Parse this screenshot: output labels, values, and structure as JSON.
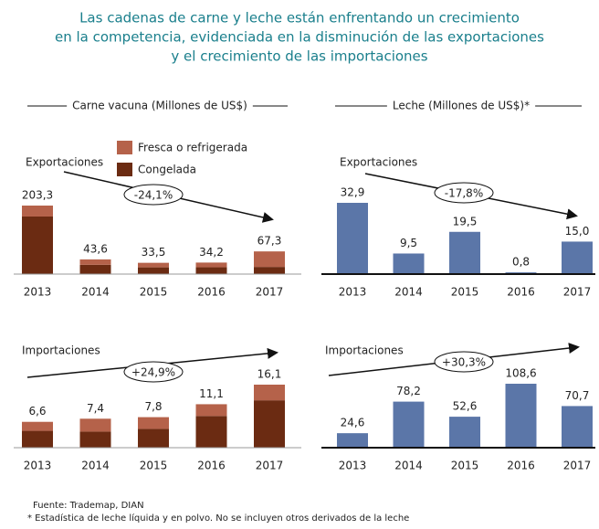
{
  "title": [
    "Las cadenas de carne y leche están enfrentando un crecimiento",
    "en la competencia, evidenciada en la disminución de las exportaciones",
    "y el crecimiento de las  importaciones"
  ],
  "source": "Fuente: Trademap, DIAN",
  "note": "* Estadística de leche líquida y en polvo. No se incluyen otros derivados de la leche",
  "chart_data": [
    {
      "type": "stacked_bar",
      "title": "Carne vacuna (Millones de US$)",
      "subtitle": "Exportaciones",
      "annotation": "-24,1%",
      "categories": [
        "2013",
        "2014",
        "2015",
        "2016",
        "2017"
      ],
      "series": [
        {
          "name": "Fresca o refrigerada",
          "color": "#b5624a",
          "values": [
            32.5,
            16,
            13.5,
            14,
            46
          ]
        },
        {
          "name": "Congelada",
          "color": "#6b2b12",
          "values": [
            170.8,
            27.6,
            20,
            20.2,
            21.3
          ]
        }
      ],
      "totals": [
        203.3,
        43.6,
        33.5,
        34.2,
        67.3
      ],
      "total_labels": [
        "203,3",
        "43,6",
        "33,5",
        "34,2",
        "67,3"
      ]
    },
    {
      "type": "bar",
      "title": "Leche (Millones de US$)*",
      "subtitle": "Exportaciones",
      "annotation": "-17,8%",
      "categories": [
        "2013",
        "2014",
        "2015",
        "2016",
        "2017"
      ],
      "color": "#5b76a8",
      "values": [
        32.9,
        9.5,
        19.5,
        0.8,
        15.0
      ],
      "value_labels": [
        "32,9",
        "9,5",
        "19,5",
        "0,8",
        "15,0"
      ]
    },
    {
      "type": "stacked_bar",
      "subtitle": "Importaciones",
      "annotation": "+24,9%",
      "categories": [
        "2013",
        "2014",
        "2015",
        "2016",
        "2017"
      ],
      "series": [
        {
          "color": "#b5624a",
          "values": [
            2.3,
            3.3,
            3.0,
            3.0,
            4.0
          ]
        },
        {
          "color": "#6b2b12",
          "values": [
            4.3,
            4.1,
            4.8,
            8.1,
            12.1
          ]
        }
      ],
      "totals": [
        6.6,
        7.4,
        7.8,
        11.1,
        16.1
      ],
      "total_labels": [
        "6,6",
        "7,4",
        "7,8",
        "11,1",
        "16,1"
      ]
    },
    {
      "type": "bar",
      "subtitle": "Importaciones",
      "annotation": "+30,3%",
      "categories": [
        "2013",
        "2014",
        "2015",
        "2016",
        "2017"
      ],
      "color": "#5b76a8",
      "values": [
        24.6,
        78.2,
        52.6,
        108.6,
        70.7
      ],
      "value_labels": [
        "24,6",
        "78,2",
        "52,6",
        "108,6",
        "70,7"
      ]
    }
  ]
}
